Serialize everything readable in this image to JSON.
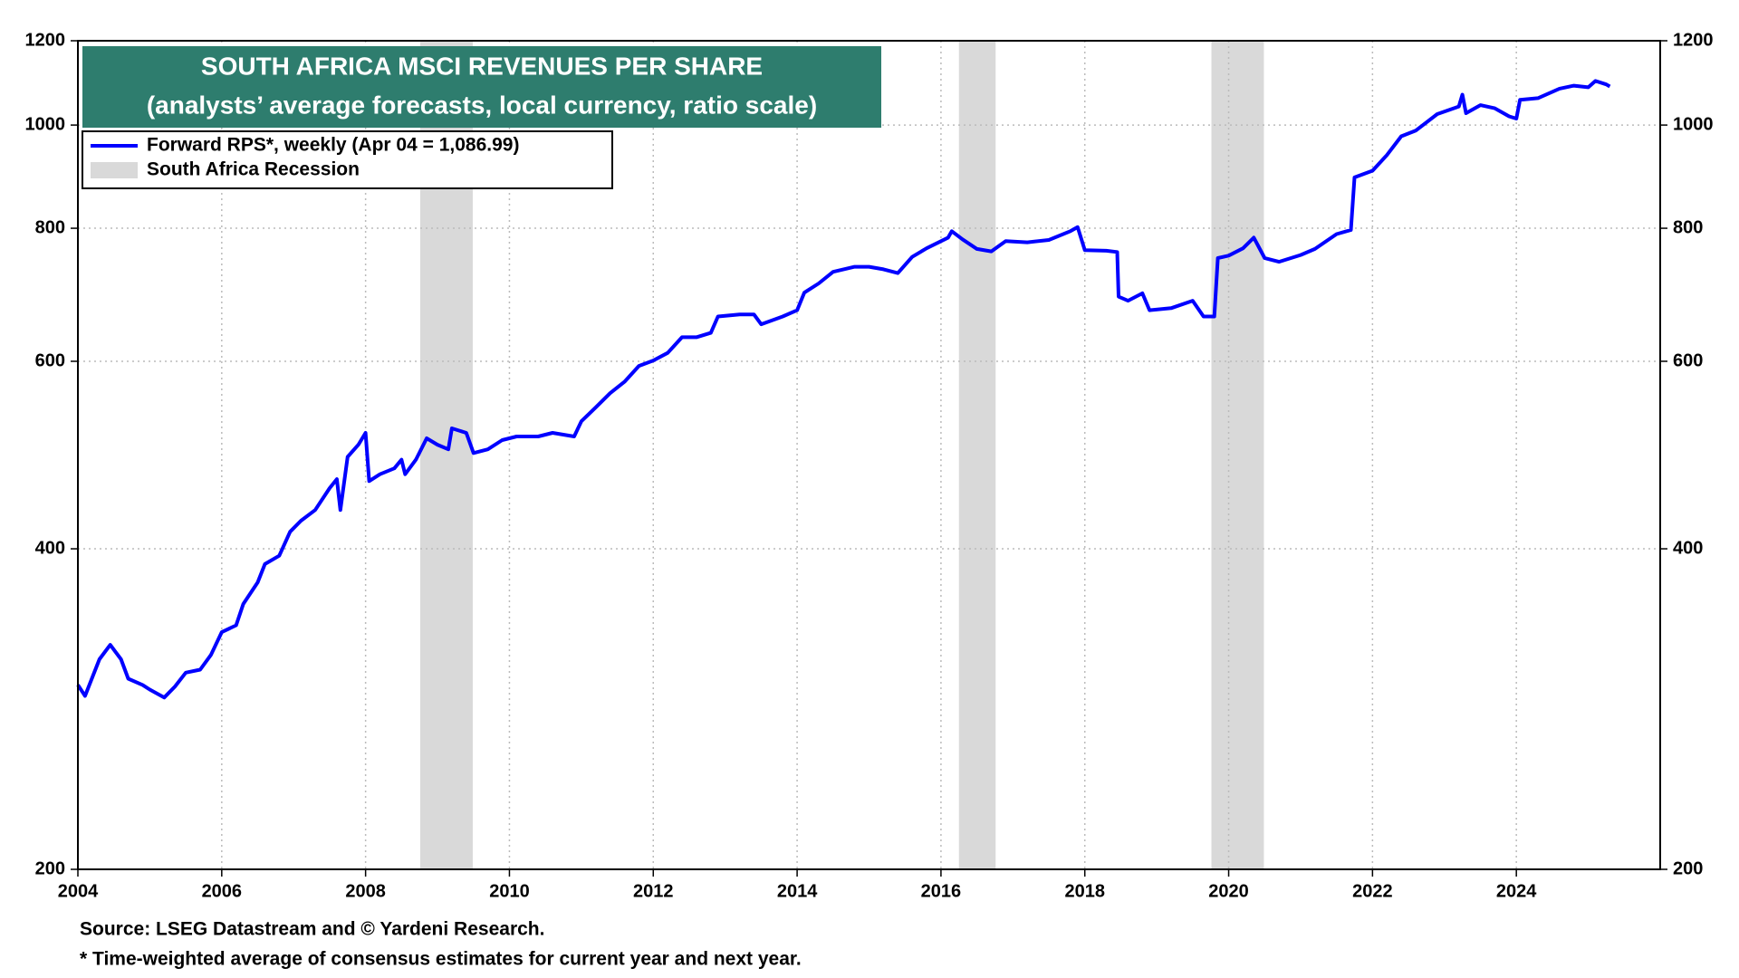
{
  "chart_data": {
    "type": "line",
    "title": "SOUTH AFRICA MSCI REVENUES PER SHARE",
    "subtitle": "(analysts’ average forecasts, local currency, ratio scale)",
    "notes": [
      "Source: LSEG Datastream and © Yardeni Research.",
      "* Time-weighted average of consensus estimates for current year and next year."
    ],
    "log_scale": true,
    "grid": true,
    "legend": "upper left",
    "xlim": [
      2004,
      2026
    ],
    "xticks": [
      2004,
      2006,
      2008,
      2010,
      2012,
      2014,
      2016,
      2018,
      2020,
      2022,
      2024
    ],
    "ylim": [
      200,
      1200
    ],
    "yticks": [
      200,
      400,
      600,
      800,
      1000,
      1200
    ],
    "recessions": {
      "name": "South Africa Recession",
      "color": "#d9d9d9",
      "periods": [
        [
          2008.76,
          2009.49
        ],
        [
          2016.25,
          2016.76
        ],
        [
          2019.76,
          2020.49
        ]
      ]
    },
    "series": [
      {
        "name": "Forward RPS*, weekly (Apr 04 = 1,086.99)",
        "color": "#0000ff",
        "x": [
          2004.0,
          2004.1,
          2004.3,
          2004.45,
          2004.6,
          2004.7,
          2004.9,
          2005.0,
          2005.2,
          2005.35,
          2005.5,
          2005.7,
          2005.85,
          2006.0,
          2006.2,
          2006.3,
          2006.5,
          2006.6,
          2006.8,
          2006.95,
          2007.1,
          2007.3,
          2007.5,
          2007.6,
          2007.65,
          2007.75,
          2007.9,
          2008.0,
          2008.05,
          2008.2,
          2008.4,
          2008.5,
          2008.55,
          2008.7,
          2008.85,
          2009.0,
          2009.15,
          2009.2,
          2009.4,
          2009.5,
          2009.7,
          2009.9,
          2010.1,
          2010.4,
          2010.6,
          2010.9,
          2011.0,
          2011.2,
          2011.4,
          2011.6,
          2011.8,
          2012.0,
          2012.2,
          2012.4,
          2012.6,
          2012.8,
          2012.9,
          2013.2,
          2013.4,
          2013.5,
          2013.8,
          2014.0,
          2014.1,
          2014.3,
          2014.5,
          2014.8,
          2015.0,
          2015.2,
          2015.4,
          2015.6,
          2015.8,
          2016.1,
          2016.15,
          2016.3,
          2016.5,
          2016.7,
          2016.9,
          2017.2,
          2017.5,
          2017.8,
          2017.9,
          2018.0,
          2018.3,
          2018.45,
          2018.47,
          2018.6,
          2018.8,
          2018.9,
          2019.2,
          2019.5,
          2019.65,
          2019.8,
          2019.85,
          2020.0,
          2020.2,
          2020.35,
          2020.5,
          2020.7,
          2021.0,
          2021.2,
          2021.5,
          2021.7,
          2021.75,
          2022.0,
          2022.2,
          2022.4,
          2022.6,
          2022.9,
          2023.2,
          2023.25,
          2023.3,
          2023.5,
          2023.7,
          2023.9,
          2024.0,
          2024.05,
          2024.3,
          2024.6,
          2024.8,
          2025.0,
          2025.1,
          2025.25,
          2025.3
        ],
        "values": [
          298,
          291,
          315,
          325,
          315,
          302,
          298,
          295,
          290,
          297,
          306,
          308,
          318,
          334,
          339,
          355,
          372,
          387,
          394,
          415,
          425,
          435,
          456,
          465,
          435,
          488,
          501,
          514,
          463,
          470,
          476,
          485,
          470,
          485,
          508,
          501,
          496,
          519,
          514,
          492,
          496,
          506,
          510,
          510,
          514,
          510,
          527,
          543,
          560,
          574,
          594,
          601,
          611,
          632,
          632,
          638,
          661,
          664,
          664,
          650,
          661,
          670,
          696,
          710,
          728,
          736,
          736,
          732,
          726,
          752,
          766,
          784,
          795,
          781,
          765,
          761,
          778,
          776,
          780,
          795,
          802,
          763,
          762,
          760,
          690,
          684,
          695,
          670,
          673,
          684,
          661,
          661,
          750,
          754,
          766,
          784,
          750,
          744,
          755,
          765,
          790,
          797,
          893,
          906,
          937,
          976,
          988,
          1024,
          1041,
          1068,
          1026,
          1044,
          1037,
          1019,
          1014,
          1056,
          1060,
          1082,
          1089,
          1085,
          1100,
          1092,
          1087
        ]
      }
    ]
  }
}
